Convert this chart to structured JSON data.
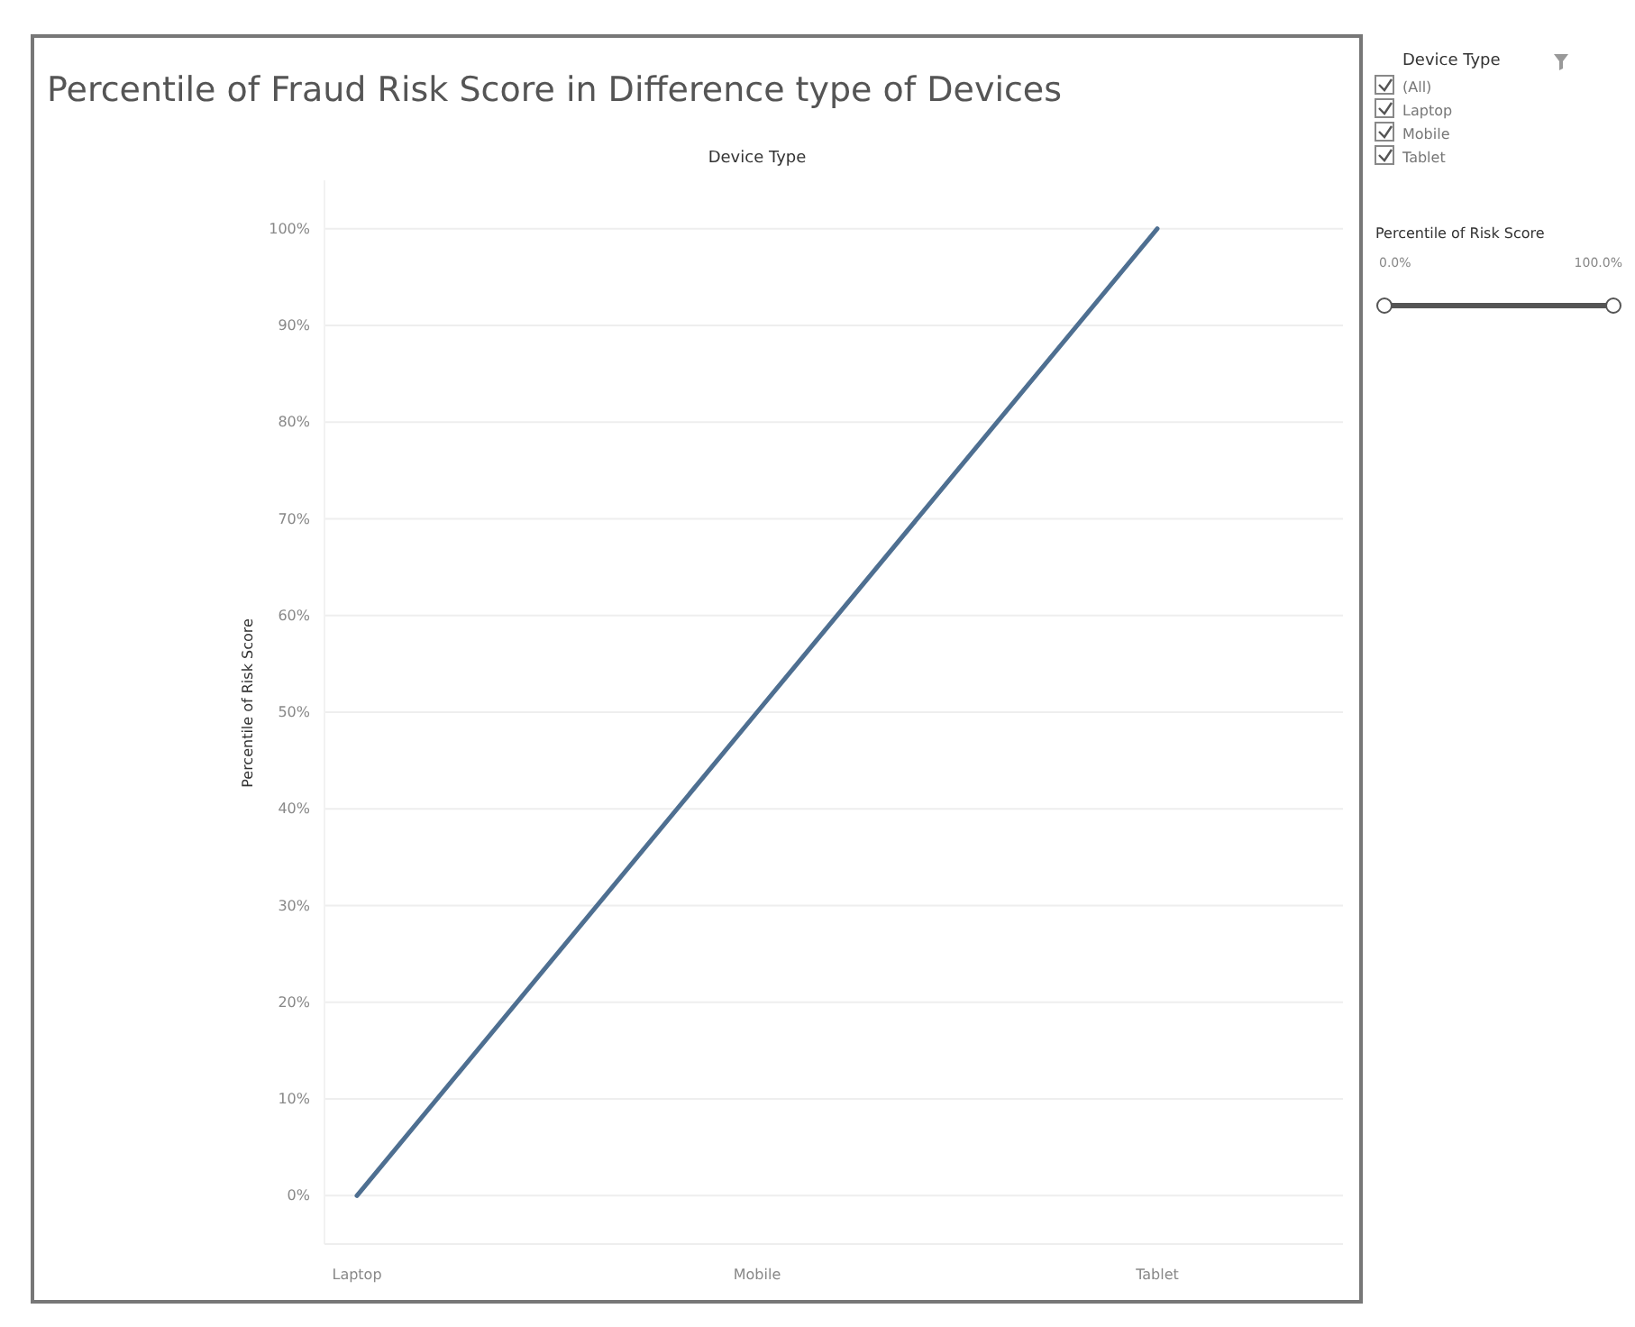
{
  "chart_data": {
    "type": "line",
    "title": "Percentile of Fraud Risk Score in Difference type of Devices",
    "xlabel": "Device Type",
    "ylabel": "Percentile of Risk Score",
    "categories": [
      "Laptop",
      "Mobile",
      "Tablet"
    ],
    "series": [
      {
        "color": "#4e6f91",
        "values": [
          0,
          50,
          100
        ]
      }
    ],
    "ylim": [
      -5,
      105
    ],
    "yticks": [
      {
        "value": 0,
        "label": "0%"
      },
      {
        "value": 10,
        "label": "10%"
      },
      {
        "value": 20,
        "label": "20%"
      },
      {
        "value": 30,
        "label": "30%"
      },
      {
        "value": 40,
        "label": "40%"
      },
      {
        "value": 50,
        "label": "50%"
      },
      {
        "value": 60,
        "label": "60%"
      },
      {
        "value": 70,
        "label": "70%"
      },
      {
        "value": 80,
        "label": "80%"
      },
      {
        "value": 90,
        "label": "90%"
      },
      {
        "value": 100,
        "label": "100%"
      }
    ],
    "grid": "y",
    "marker": "none",
    "line_style": "solid",
    "annotations": [
      "Device Type",
      "(All)",
      "Laptop",
      "Mobile",
      "Tablet",
      "Percentile of Risk Score",
      "0.0%",
      "100.0%"
    ]
  }
}
